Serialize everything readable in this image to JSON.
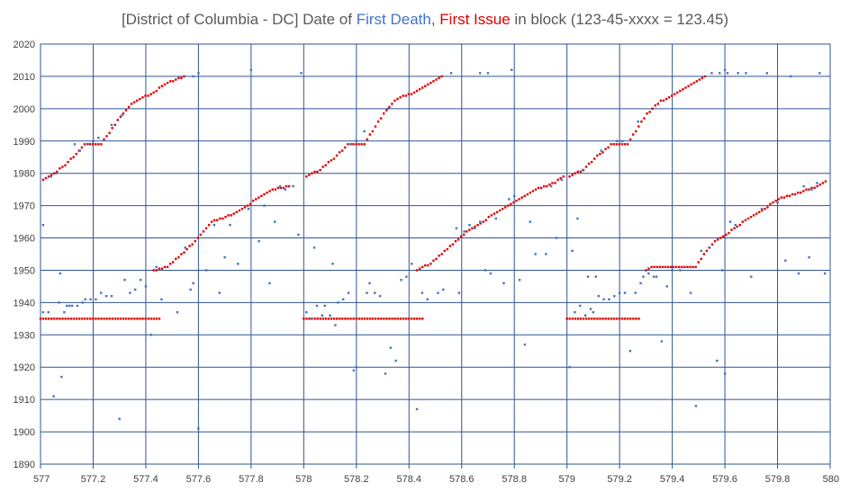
{
  "chart_data": {
    "type": "scatter",
    "title_parts": {
      "prefix": "[District of Columbia - DC] Date of ",
      "series1": "First Death",
      "sep": ", ",
      "series2": "First Issue",
      "suffix": " in block (123-45-xxxx = 123.45)"
    },
    "xlim": [
      577,
      580
    ],
    "ylim": [
      1890,
      2020
    ],
    "x_ticks": [
      "577",
      "577.2",
      "577.4",
      "577.6",
      "577.8",
      "578",
      "578.2",
      "578.4",
      "578.6",
      "578.8",
      "579",
      "579.2",
      "579.4",
      "579.6",
      "579.8",
      "580"
    ],
    "y_ticks": [
      "1890",
      "1900",
      "1910",
      "1920",
      "1930",
      "1940",
      "1950",
      "1960",
      "1970",
      "1980",
      "1990",
      "2000",
      "2010",
      "2020"
    ],
    "grid": true,
    "colors": {
      "first_death": "#4472c4",
      "first_issue": "#e00000",
      "grid": "#2f5597",
      "title": "#595959"
    },
    "series": [
      {
        "name": "First Death",
        "points": [
          [
            577.01,
            1937
          ],
          [
            577.01,
            1964
          ],
          [
            577.03,
            1937
          ],
          [
            577.04,
            1979
          ],
          [
            577.05,
            1911
          ],
          [
            577.06,
            1980
          ],
          [
            577.07,
            1940
          ],
          [
            577.075,
            1949
          ],
          [
            577.08,
            1917
          ],
          [
            577.09,
            1937
          ],
          [
            577.1,
            1939
          ],
          [
            577.11,
            1939
          ],
          [
            577.12,
            1939
          ],
          [
            577.13,
            1989
          ],
          [
            577.14,
            1939
          ],
          [
            577.15,
            1987
          ],
          [
            577.16,
            1940
          ],
          [
            577.17,
            1941
          ],
          [
            577.18,
            1989
          ],
          [
            577.19,
            1941
          ],
          [
            577.2,
            1990
          ],
          [
            577.21,
            1941
          ],
          [
            577.22,
            1991
          ],
          [
            577.23,
            1943
          ],
          [
            577.25,
            1942
          ],
          [
            577.27,
            1942
          ],
          [
            577.27,
            1995
          ],
          [
            577.3,
            1904
          ],
          [
            577.31,
            1998
          ],
          [
            577.32,
            1947
          ],
          [
            577.34,
            1943
          ],
          [
            577.36,
            1944
          ],
          [
            577.38,
            1947
          ],
          [
            577.4,
            1945
          ],
          [
            577.42,
            1930
          ],
          [
            577.44,
            1951
          ],
          [
            577.46,
            1941
          ],
          [
            577.52,
            1937
          ],
          [
            577.55,
            1957
          ],
          [
            577.57,
            1944
          ],
          [
            577.58,
            1946
          ],
          [
            577.58,
            2010
          ],
          [
            577.6,
            2011
          ],
          [
            577.6,
            1901
          ],
          [
            577.63,
            1950
          ],
          [
            577.66,
            1964
          ],
          [
            577.68,
            1943
          ],
          [
            577.7,
            1954
          ],
          [
            577.72,
            1964
          ],
          [
            577.75,
            1952
          ],
          [
            577.79,
            1969
          ],
          [
            577.8,
            2012
          ],
          [
            577.83,
            1959
          ],
          [
            577.85,
            1970
          ],
          [
            577.87,
            1946
          ],
          [
            577.89,
            1965
          ],
          [
            577.91,
            1976
          ],
          [
            577.93,
            1975
          ],
          [
            577.96,
            1976
          ],
          [
            577.98,
            1961
          ],
          [
            577.99,
            2011
          ],
          [
            578.01,
            1937
          ],
          [
            578.03,
            1935
          ],
          [
            578.04,
            1957
          ],
          [
            578.05,
            1939
          ],
          [
            578.07,
            1936
          ],
          [
            578.08,
            1939
          ],
          [
            578.1,
            1936
          ],
          [
            578.11,
            1952
          ],
          [
            578.12,
            1933
          ],
          [
            578.13,
            1940
          ],
          [
            578.15,
            1941
          ],
          [
            578.17,
            1943
          ],
          [
            578.18,
            1989
          ],
          [
            578.19,
            1919
          ],
          [
            578.2,
            1920
          ],
          [
            578.2,
            1990
          ],
          [
            578.23,
            1993
          ],
          [
            578.24,
            1943
          ],
          [
            578.25,
            1946
          ],
          [
            578.27,
            1943
          ],
          [
            578.29,
            1942
          ],
          [
            578.31,
            1918
          ],
          [
            578.32,
            2000
          ],
          [
            578.33,
            1926
          ],
          [
            578.35,
            1922
          ],
          [
            578.37,
            1947
          ],
          [
            578.39,
            1948
          ],
          [
            578.41,
            1952
          ],
          [
            578.43,
            1907
          ],
          [
            578.45,
            1943
          ],
          [
            578.47,
            1941
          ],
          [
            578.51,
            1943
          ],
          [
            578.53,
            1944
          ],
          [
            578.56,
            2011
          ],
          [
            578.58,
            1963
          ],
          [
            578.59,
            1943
          ],
          [
            578.61,
            1962
          ],
          [
            578.63,
            1964
          ],
          [
            578.65,
            1963
          ],
          [
            578.67,
            1965
          ],
          [
            578.67,
            2011
          ],
          [
            578.69,
            1950
          ],
          [
            578.7,
            2011
          ],
          [
            578.71,
            1949
          ],
          [
            578.73,
            1966
          ],
          [
            578.76,
            1946
          ],
          [
            578.78,
            1972
          ],
          [
            578.79,
            2012
          ],
          [
            578.8,
            1973
          ],
          [
            578.82,
            1947
          ],
          [
            578.84,
            1927
          ],
          [
            578.86,
            1965
          ],
          [
            578.88,
            1955
          ],
          [
            578.92,
            1955
          ],
          [
            578.94,
            1976
          ],
          [
            578.96,
            1960
          ],
          [
            578.98,
            1978
          ],
          [
            579.01,
            1920
          ],
          [
            579.02,
            1956
          ],
          [
            579.03,
            1937
          ],
          [
            579.04,
            1966
          ],
          [
            579.05,
            1939
          ],
          [
            579.06,
            1981
          ],
          [
            579.07,
            1936
          ],
          [
            579.08,
            1948
          ],
          [
            579.09,
            1938
          ],
          [
            579.1,
            1937
          ],
          [
            579.11,
            1948
          ],
          [
            579.12,
            1942
          ],
          [
            579.13,
            1987
          ],
          [
            579.14,
            1941
          ],
          [
            579.16,
            1941
          ],
          [
            579.18,
            1942
          ],
          [
            579.19,
            1990
          ],
          [
            579.2,
            1943
          ],
          [
            579.21,
            1990
          ],
          [
            579.22,
            1943
          ],
          [
            579.24,
            1925
          ],
          [
            579.26,
            1943
          ],
          [
            579.27,
            1996
          ],
          [
            579.28,
            1946
          ],
          [
            579.29,
            1948
          ],
          [
            579.31,
            1949
          ],
          [
            579.33,
            1948
          ],
          [
            579.34,
            1948
          ],
          [
            579.36,
            1928
          ],
          [
            579.38,
            1945
          ],
          [
            579.4,
            1950
          ],
          [
            579.43,
            1950
          ],
          [
            579.47,
            1943
          ],
          [
            579.49,
            1908
          ],
          [
            579.51,
            1956
          ],
          [
            579.54,
            1957
          ],
          [
            579.55,
            2011
          ],
          [
            579.57,
            1922
          ],
          [
            579.58,
            2011
          ],
          [
            579.59,
            1950
          ],
          [
            579.6,
            2012
          ],
          [
            579.6,
            1918
          ],
          [
            579.61,
            2011
          ],
          [
            579.62,
            1965
          ],
          [
            579.64,
            1964
          ],
          [
            579.65,
            2011
          ],
          [
            579.68,
            2011
          ],
          [
            579.7,
            1948
          ],
          [
            579.74,
            1969
          ],
          [
            579.76,
            2011
          ],
          [
            579.8,
            1971
          ],
          [
            579.83,
            1953
          ],
          [
            579.85,
            2010
          ],
          [
            579.88,
            1949
          ],
          [
            579.9,
            1976
          ],
          [
            579.92,
            1954
          ],
          [
            579.93,
            1975
          ],
          [
            579.95,
            1977
          ],
          [
            579.96,
            2011
          ],
          [
            579.98,
            1949
          ]
        ]
      },
      {
        "name": "First Issue",
        "blocks": [
          {
            "x_start": 577.0,
            "x_end": 577.48,
            "plateau": 1935,
            "plateau_end": 577.46,
            "high": [
              [
                577.01,
                1978
              ],
              [
                577.05,
                1980
              ],
              [
                577.1,
                1983
              ],
              [
                577.17,
                1989
              ],
              [
                577.23,
                1989
              ],
              [
                577.3,
                1997
              ],
              [
                577.35,
                2002
              ],
              [
                577.43,
                2005
              ],
              [
                577.48,
                2008
              ],
              [
                577.55,
                2010
              ]
            ],
            "low": [
              [
                577.43,
                1950
              ],
              [
                577.48,
                1951
              ],
              [
                577.55,
                1956
              ],
              [
                577.6,
                1960
              ],
              [
                577.65,
                1965
              ],
              [
                577.72,
                1967
              ],
              [
                577.77,
                1969
              ],
              [
                577.82,
                1972
              ],
              [
                577.88,
                1975
              ],
              [
                577.95,
                1976
              ]
            ]
          },
          {
            "x_start": 578.0,
            "x_end": 578.48,
            "plateau": 1935,
            "plateau_end": 578.46,
            "high": [
              [
                578.01,
                1979
              ],
              [
                578.06,
                1981
              ],
              [
                578.12,
                1985
              ],
              [
                578.17,
                1989
              ],
              [
                578.23,
                1989
              ],
              [
                578.3,
                1998
              ],
              [
                578.35,
                2003
              ],
              [
                578.42,
                2005
              ],
              [
                578.48,
                2008
              ],
              [
                578.53,
                2010
              ]
            ],
            "low": [
              [
                578.43,
                1950
              ],
              [
                578.48,
                1952
              ],
              [
                578.55,
                1957
              ],
              [
                578.62,
                1962
              ],
              [
                578.68,
                1965
              ],
              [
                578.75,
                1969
              ],
              [
                578.82,
                1972
              ],
              [
                578.88,
                1975
              ],
              [
                578.95,
                1977
              ],
              [
                578.99,
                1979
              ]
            ]
          },
          {
            "x_start": 579.0,
            "x_end": 579.3,
            "plateau": 1935,
            "plateau_end": 579.28,
            "high": [
              [
                579.01,
                1979
              ],
              [
                579.06,
                1981
              ],
              [
                579.11,
                1985
              ],
              [
                579.17,
                1989
              ],
              [
                579.23,
                1989
              ],
              [
                579.3,
                1998
              ],
              [
                579.35,
                2002
              ],
              [
                579.42,
                2005
              ],
              [
                579.48,
                2008
              ],
              [
                579.53,
                2010
              ]
            ],
            "low": [
              [
                579.3,
                1950
              ],
              [
                579.32,
                1951
              ],
              [
                579.49,
                1951
              ],
              [
                579.52,
                1955
              ],
              [
                579.56,
                1959
              ],
              [
                579.62,
                1962
              ],
              [
                579.67,
                1965
              ],
              [
                579.75,
                1969
              ],
              [
                579.8,
                1972
              ],
              [
                579.88,
                1974
              ],
              [
                579.95,
                1976
              ],
              [
                579.99,
                1978
              ]
            ]
          }
        ]
      }
    ]
  }
}
